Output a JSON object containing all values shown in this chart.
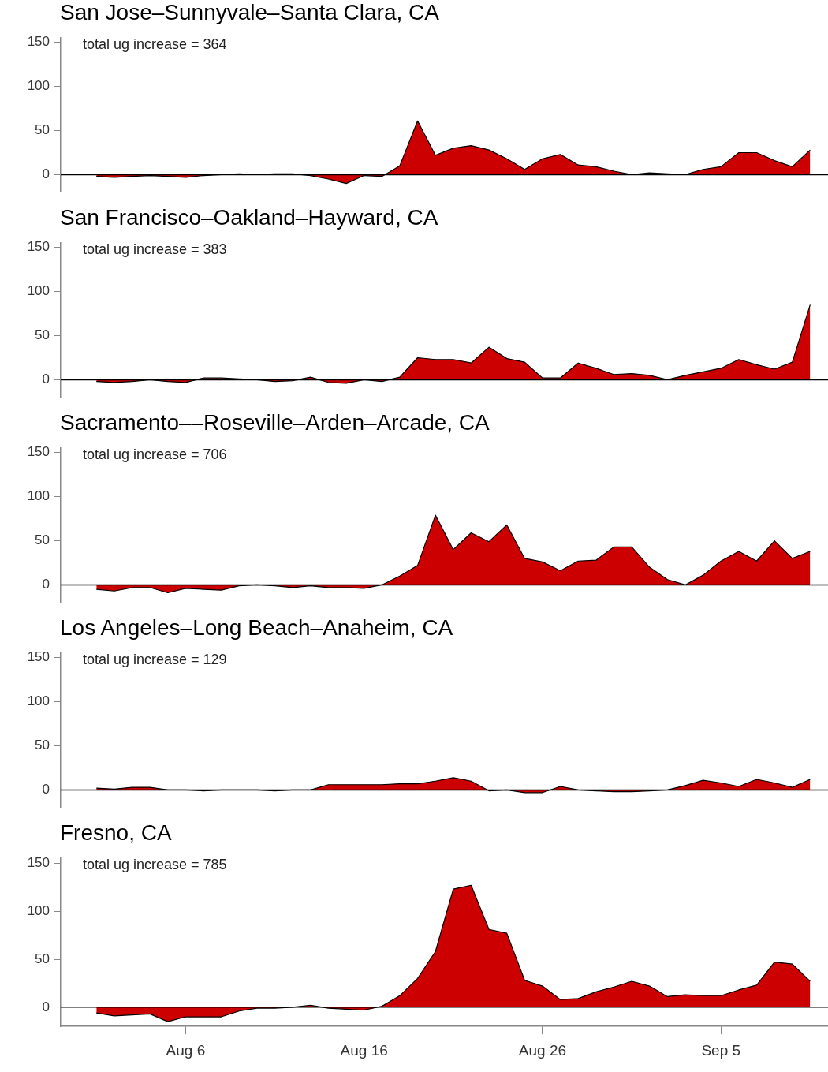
{
  "chart_data": [
    {
      "type": "area",
      "title": "San Jose–Sunnyvale–Santa Clara, CA",
      "annotations": [
        "total ug increase = 364"
      ],
      "marker": "none",
      "tick_labels": "y",
      "x": [
        "--08-01",
        "--08-02",
        "--08-03",
        "--08-04",
        "--08-05",
        "--08-06",
        "--08-07",
        "--08-08",
        "--08-09",
        "--08-10",
        "--08-11",
        "--08-12",
        "--08-13",
        "--08-14",
        "--08-15",
        "--08-16",
        "--08-17",
        "--08-18",
        "--08-19",
        "--08-20",
        "--08-21",
        "--08-22",
        "--08-23",
        "--08-24",
        "--08-25",
        "--08-26",
        "--08-27",
        "--08-28",
        "--08-29",
        "--08-30",
        "--08-31",
        "--09-01",
        "--09-02",
        "--09-03",
        "--09-04",
        "--09-05",
        "--09-06",
        "--09-07",
        "--09-08",
        "--09-09",
        "--09-10"
      ],
      "series": [
        {
          "color": "#cc0000",
          "values": [
            -2,
            -3,
            -2,
            -1,
            -2,
            -3,
            -1,
            0,
            1,
            0,
            1,
            1,
            -1,
            -5,
            -10,
            -1,
            -2,
            10,
            61,
            22,
            30,
            33,
            28,
            18,
            6,
            18,
            23,
            11,
            9,
            4,
            0,
            2,
            1,
            0,
            6,
            9,
            25,
            25,
            16,
            9,
            28
          ]
        }
      ],
      "xlim": [
        "--07-30",
        "--09-11"
      ],
      "ylim": [
        -20,
        155
      ],
      "yticks": [
        0,
        50,
        100,
        150
      ],
      "ref_lines": [
        {
          "axis": "y",
          "value": 0
        }
      ]
    },
    {
      "type": "area",
      "title": "San Francisco–Oakland–Hayward, CA",
      "annotations": [
        "total ug increase = 383"
      ],
      "marker": "none",
      "tick_labels": "y",
      "x": [
        "--08-01",
        "--08-02",
        "--08-03",
        "--08-04",
        "--08-05",
        "--08-06",
        "--08-07",
        "--08-08",
        "--08-09",
        "--08-10",
        "--08-11",
        "--08-12",
        "--08-13",
        "--08-14",
        "--08-15",
        "--08-16",
        "--08-17",
        "--08-18",
        "--08-19",
        "--08-20",
        "--08-21",
        "--08-22",
        "--08-23",
        "--08-24",
        "--08-25",
        "--08-26",
        "--08-27",
        "--08-28",
        "--08-29",
        "--08-30",
        "--08-31",
        "--09-01",
        "--09-02",
        "--09-03",
        "--09-04",
        "--09-05",
        "--09-06",
        "--09-07",
        "--09-08",
        "--09-09",
        "--09-10"
      ],
      "series": [
        {
          "color": "#cc0000",
          "values": [
            -2,
            -3,
            -2,
            0,
            -2,
            -3,
            2,
            2,
            1,
            0,
            -2,
            -1,
            3,
            -3,
            -4,
            0,
            -2,
            3,
            25,
            23,
            23,
            19,
            37,
            24,
            20,
            2,
            2,
            19,
            13,
            6,
            7,
            5,
            0,
            5,
            9,
            13,
            23,
            17,
            12,
            20,
            85
          ]
        }
      ],
      "xlim": [
        "--07-30",
        "--09-11"
      ],
      "ylim": [
        -20,
        155
      ],
      "yticks": [
        0,
        50,
        100,
        150
      ],
      "ref_lines": [
        {
          "axis": "y",
          "value": 0
        }
      ]
    },
    {
      "type": "area",
      "title": "Sacramento––Roseville–Arden–Arcade, CA",
      "annotations": [
        "total ug increase = 706"
      ],
      "marker": "none",
      "tick_labels": "y",
      "x": [
        "--08-01",
        "--08-02",
        "--08-03",
        "--08-04",
        "--08-05",
        "--08-06",
        "--08-07",
        "--08-08",
        "--08-09",
        "--08-10",
        "--08-11",
        "--08-12",
        "--08-13",
        "--08-14",
        "--08-15",
        "--08-16",
        "--08-17",
        "--08-18",
        "--08-19",
        "--08-20",
        "--08-21",
        "--08-22",
        "--08-23",
        "--08-24",
        "--08-25",
        "--08-26",
        "--08-27",
        "--08-28",
        "--08-29",
        "--08-30",
        "--08-31",
        "--09-01",
        "--09-02",
        "--09-03",
        "--09-04",
        "--09-05",
        "--09-06",
        "--09-07",
        "--09-08",
        "--09-09",
        "--09-10"
      ],
      "series": [
        {
          "color": "#cc0000",
          "values": [
            -5,
            -7,
            -3,
            -3,
            -9,
            -4,
            -5,
            -6,
            -1,
            0,
            -1,
            -3,
            -1,
            -3,
            -3,
            -4,
            0,
            10,
            22,
            79,
            40,
            59,
            49,
            68,
            30,
            26,
            16,
            27,
            28,
            43,
            43,
            20,
            6,
            0,
            11,
            27,
            38,
            27,
            50,
            30,
            38
          ]
        }
      ],
      "xlim": [
        "--07-30",
        "--09-11"
      ],
      "ylim": [
        -20,
        155
      ],
      "yticks": [
        0,
        50,
        100,
        150
      ],
      "ref_lines": [
        {
          "axis": "y",
          "value": 0
        }
      ]
    },
    {
      "type": "area",
      "title": "Los Angeles–Long Beach–Anaheim, CA",
      "annotations": [
        "total ug increase = 129"
      ],
      "marker": "none",
      "tick_labels": "y",
      "x": [
        "--08-01",
        "--08-02",
        "--08-03",
        "--08-04",
        "--08-05",
        "--08-06",
        "--08-07",
        "--08-08",
        "--08-09",
        "--08-10",
        "--08-11",
        "--08-12",
        "--08-13",
        "--08-14",
        "--08-15",
        "--08-16",
        "--08-17",
        "--08-18",
        "--08-19",
        "--08-20",
        "--08-21",
        "--08-22",
        "--08-23",
        "--08-24",
        "--08-25",
        "--08-26",
        "--08-27",
        "--08-28",
        "--08-29",
        "--08-30",
        "--08-31",
        "--09-01",
        "--09-02",
        "--09-03",
        "--09-04",
        "--09-05",
        "--09-06",
        "--09-07",
        "--09-08",
        "--09-09",
        "--09-10"
      ],
      "series": [
        {
          "color": "#cc0000",
          "values": [
            2,
            1,
            3,
            3,
            0,
            0,
            -1,
            0,
            0,
            0,
            -1,
            0,
            0,
            6,
            6,
            6,
            6,
            7,
            7,
            10,
            14,
            10,
            -1,
            0,
            -3,
            -3,
            4,
            0,
            -1,
            -2,
            -2,
            -1,
            0,
            5,
            11,
            8,
            4,
            12,
            8,
            3,
            12
          ]
        }
      ],
      "xlim": [
        "--07-30",
        "--09-11"
      ],
      "ylim": [
        -20,
        155
      ],
      "yticks": [
        0,
        50,
        100,
        150
      ],
      "ref_lines": [
        {
          "axis": "y",
          "value": 0
        }
      ]
    },
    {
      "type": "area",
      "title": "Fresno, CA",
      "annotations": [
        "total ug increase = 785"
      ],
      "marker": "none",
      "x": [
        "--08-01",
        "--08-02",
        "--08-03",
        "--08-04",
        "--08-05",
        "--08-06",
        "--08-07",
        "--08-08",
        "--08-09",
        "--08-10",
        "--08-11",
        "--08-12",
        "--08-13",
        "--08-14",
        "--08-15",
        "--08-16",
        "--08-17",
        "--08-18",
        "--08-19",
        "--08-20",
        "--08-21",
        "--08-22",
        "--08-23",
        "--08-24",
        "--08-25",
        "--08-26",
        "--08-27",
        "--08-28",
        "--08-29",
        "--08-30",
        "--08-31",
        "--09-01",
        "--09-02",
        "--09-03",
        "--09-04",
        "--09-05",
        "--09-06",
        "--09-07",
        "--09-08",
        "--09-09",
        "--09-10"
      ],
      "series": [
        {
          "color": "#cc0000",
          "values": [
            -6,
            -9,
            -8,
            -7,
            -15,
            -10,
            -10,
            -10,
            -4,
            -1,
            -1,
            0,
            2,
            -1,
            -2,
            -3,
            1,
            12,
            30,
            58,
            123,
            127,
            81,
            77,
            28,
            22,
            8,
            9,
            16,
            21,
            27,
            22,
            11,
            13,
            12,
            12,
            18,
            23,
            47,
            45,
            27
          ]
        }
      ],
      "xlim": [
        "--07-30",
        "--09-11"
      ],
      "ylim": [
        -20,
        155
      ],
      "yticks": [
        0,
        50,
        100,
        150
      ],
      "xticks": [
        {
          "value": "--08-06",
          "label": "Aug 6"
        },
        {
          "value": "--08-16",
          "label": "Aug 16"
        },
        {
          "value": "--08-26",
          "label": "Aug 26"
        },
        {
          "value": "--09-05",
          "label": "Sep 5"
        }
      ],
      "ref_lines": [
        {
          "axis": "y",
          "value": 0
        }
      ]
    }
  ]
}
